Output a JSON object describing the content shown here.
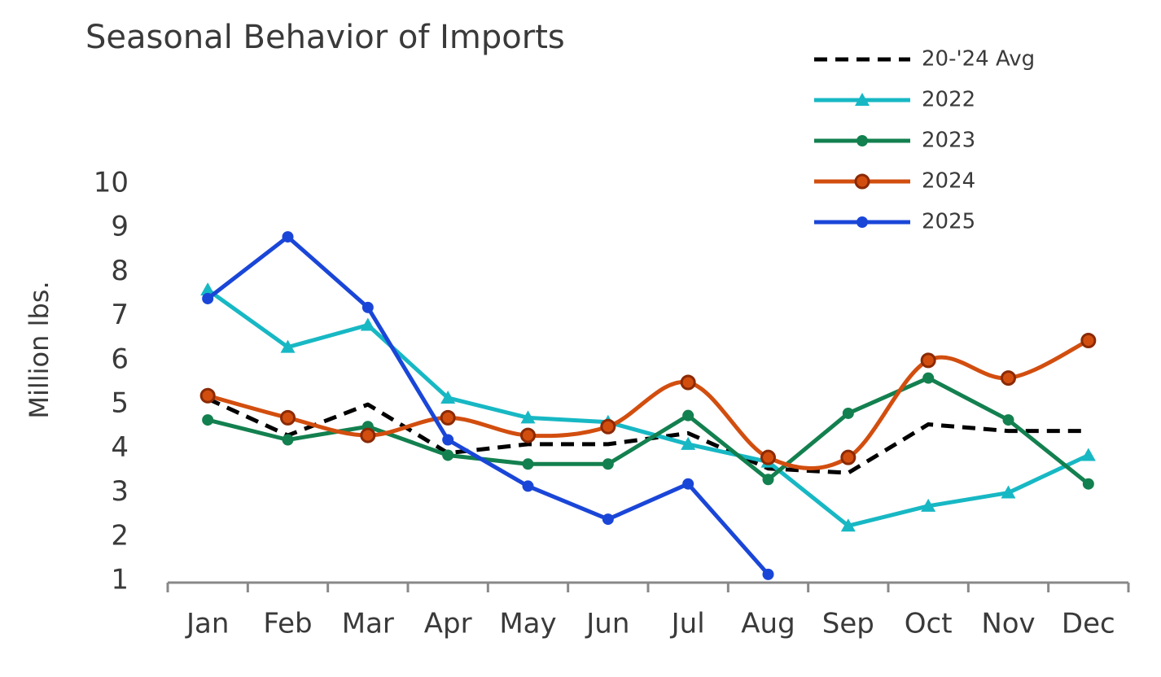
{
  "chart_data": {
    "type": "line",
    "title": "Seasonal Behavior of Imports",
    "y_label": "Million lbs.",
    "categories": [
      "Jan",
      "Feb",
      "Mar",
      "Apr",
      "May",
      "Jun",
      "Jul",
      "Aug",
      "Sep",
      "Oct",
      "Nov",
      "Dec"
    ],
    "ylim": [
      1,
      10
    ],
    "yticks": [
      1,
      2,
      3,
      4,
      5,
      6,
      7,
      8,
      9,
      10
    ],
    "grid": false,
    "legend": "upper right",
    "series": [
      {
        "name": "20-'24 Avg",
        "color": "#000000",
        "dash": true,
        "marker": null,
        "values": [
          5.13,
          4.3,
          5.0,
          3.9,
          4.1,
          4.1,
          4.35,
          3.55,
          3.45,
          4.55,
          4.4,
          4.4
        ]
      },
      {
        "name": "2022",
        "color": "#17b8c4",
        "marker": "triangle",
        "values": [
          7.6,
          6.3,
          6.8,
          5.15,
          4.7,
          4.6,
          4.1,
          3.7,
          2.25,
          2.7,
          3.0,
          3.85
        ]
      },
      {
        "name": "2023",
        "color": "#13804f",
        "marker": "circle",
        "values": [
          4.65,
          4.2,
          4.5,
          3.85,
          3.65,
          3.65,
          4.75,
          3.3,
          4.8,
          5.6,
          4.65,
          3.2
        ]
      },
      {
        "name": "2024",
        "color": "#d24e0f",
        "marker": "circle",
        "marker_edge": "#8a2a05",
        "smooth": true,
        "values": [
          5.2,
          4.7,
          4.3,
          4.7,
          4.3,
          4.5,
          5.5,
          3.8,
          3.8,
          6.0,
          5.6,
          6.45
        ]
      },
      {
        "name": "2025",
        "color": "#1a46d8",
        "marker": "circle",
        "values": [
          7.4,
          8.8,
          7.2,
          4.2,
          3.15,
          2.4,
          3.2,
          1.15,
          null,
          null,
          null,
          null
        ]
      }
    ]
  }
}
